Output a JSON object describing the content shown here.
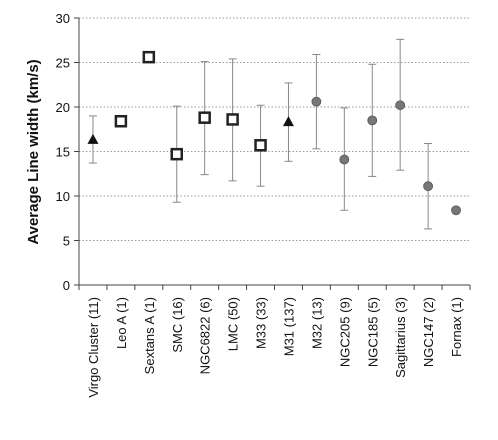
{
  "chart_data": {
    "type": "scatter",
    "title": "",
    "xlabel": "",
    "ylabel": "Average Line width  (km/s)",
    "ylim": [
      0,
      30
    ],
    "yticks": [
      0,
      5,
      10,
      15,
      20,
      25,
      30
    ],
    "grid": "horizontal-dotted",
    "categories": [
      "Virgo Cluster  (11)",
      "Leo A  (1)",
      "Sextans A  (1)",
      "SMC  (16)",
      "NGC6822  (6)",
      "LMC  (50)",
      "M33  (33)",
      "M31  (137)",
      "M32  (13)",
      "NGC205  (9)",
      "NGC185  (5)",
      "Sagittarius  (3)",
      "NGC147  (2)",
      "Fornax  (1)"
    ],
    "points": [
      {
        "y": 16.3,
        "low": 13.7,
        "high": 19.0,
        "marker": "triangle"
      },
      {
        "y": 18.4,
        "low": null,
        "high": null,
        "marker": "square"
      },
      {
        "y": 25.6,
        "low": null,
        "high": null,
        "marker": "square"
      },
      {
        "y": 14.7,
        "low": 9.3,
        "high": 20.1,
        "marker": "square"
      },
      {
        "y": 18.8,
        "low": 12.4,
        "high": 25.1,
        "marker": "square"
      },
      {
        "y": 18.6,
        "low": 11.7,
        "high": 25.4,
        "marker": "square"
      },
      {
        "y": 15.7,
        "low": 11.1,
        "high": 20.2,
        "marker": "square"
      },
      {
        "y": 18.3,
        "low": 13.9,
        "high": 22.7,
        "marker": "triangle"
      },
      {
        "y": 20.6,
        "low": 15.3,
        "high": 25.9,
        "marker": "circle"
      },
      {
        "y": 14.1,
        "low": 8.4,
        "high": 19.9,
        "marker": "circle"
      },
      {
        "y": 18.5,
        "low": 12.2,
        "high": 24.8,
        "marker": "circle"
      },
      {
        "y": 20.2,
        "low": 12.9,
        "high": 27.6,
        "marker": "circle"
      },
      {
        "y": 11.1,
        "low": 6.3,
        "high": 15.9,
        "marker": "circle"
      },
      {
        "y": 8.4,
        "low": null,
        "high": null,
        "marker": "circle"
      }
    ]
  }
}
